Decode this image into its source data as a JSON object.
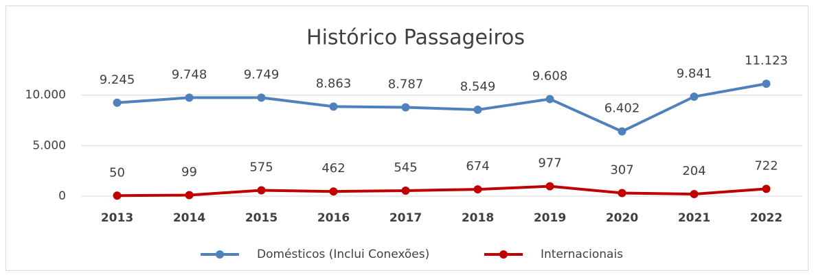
{
  "chart_data": {
    "type": "line",
    "title": "Histórico Passageiros",
    "categories": [
      "2013",
      "2014",
      "2015",
      "2016",
      "2017",
      "2018",
      "2019",
      "2020",
      "2021",
      "2022"
    ],
    "series": [
      {
        "name": "Domésticos (Inclui Conexões)",
        "color": "#4f81bd",
        "values": [
          9245,
          9748,
          9749,
          8863,
          8787,
          8549,
          9608,
          6402,
          9841,
          11123
        ],
        "value_labels": [
          "9.245",
          "9.748",
          "9.749",
          "8.863",
          "8.787",
          "8.549",
          "9.608",
          "6.402",
          "9.841",
          "11.123"
        ]
      },
      {
        "name": "Internacionais",
        "color": "#c00000",
        "values": [
          50,
          99,
          575,
          462,
          545,
          674,
          977,
          307,
          204,
          722
        ]
      }
    ],
    "ylim": [
      0,
      15000
    ],
    "yticks": [
      0,
      {
        "value": 5000,
        "label": "5.000"
      },
      {
        "value": 10000,
        "label": "10.000"
      }
    ],
    "grid": true,
    "legend": "bottom"
  }
}
